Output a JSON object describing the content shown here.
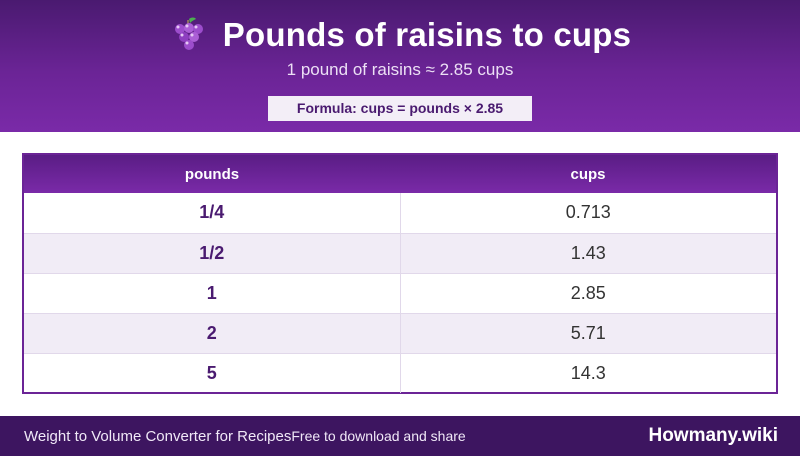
{
  "header": {
    "icon": "grape-icon",
    "title": "Pounds of raisins to cups",
    "subtitle": "1 pound of raisins ≈ 2.85 cups",
    "formula": "Formula: cups = pounds × 2.85"
  },
  "table": {
    "columns": [
      "pounds",
      "cups"
    ],
    "rows": [
      {
        "pounds": "1/4",
        "cups": "0.713"
      },
      {
        "pounds": "1/2",
        "cups": "1.43"
      },
      {
        "pounds": "1",
        "cups": "2.85"
      },
      {
        "pounds": "2",
        "cups": "5.71"
      },
      {
        "pounds": "5",
        "cups": "14.3"
      }
    ]
  },
  "footer": {
    "left_text": "Weight to Volume Converter for Recipes",
    "mid_text": "Free to download and share",
    "brand": "Howmany.wiki"
  },
  "colors": {
    "header_purple": "#6b2496",
    "dark_purple": "#3d1560",
    "row_alt": "#f1ecf6"
  }
}
